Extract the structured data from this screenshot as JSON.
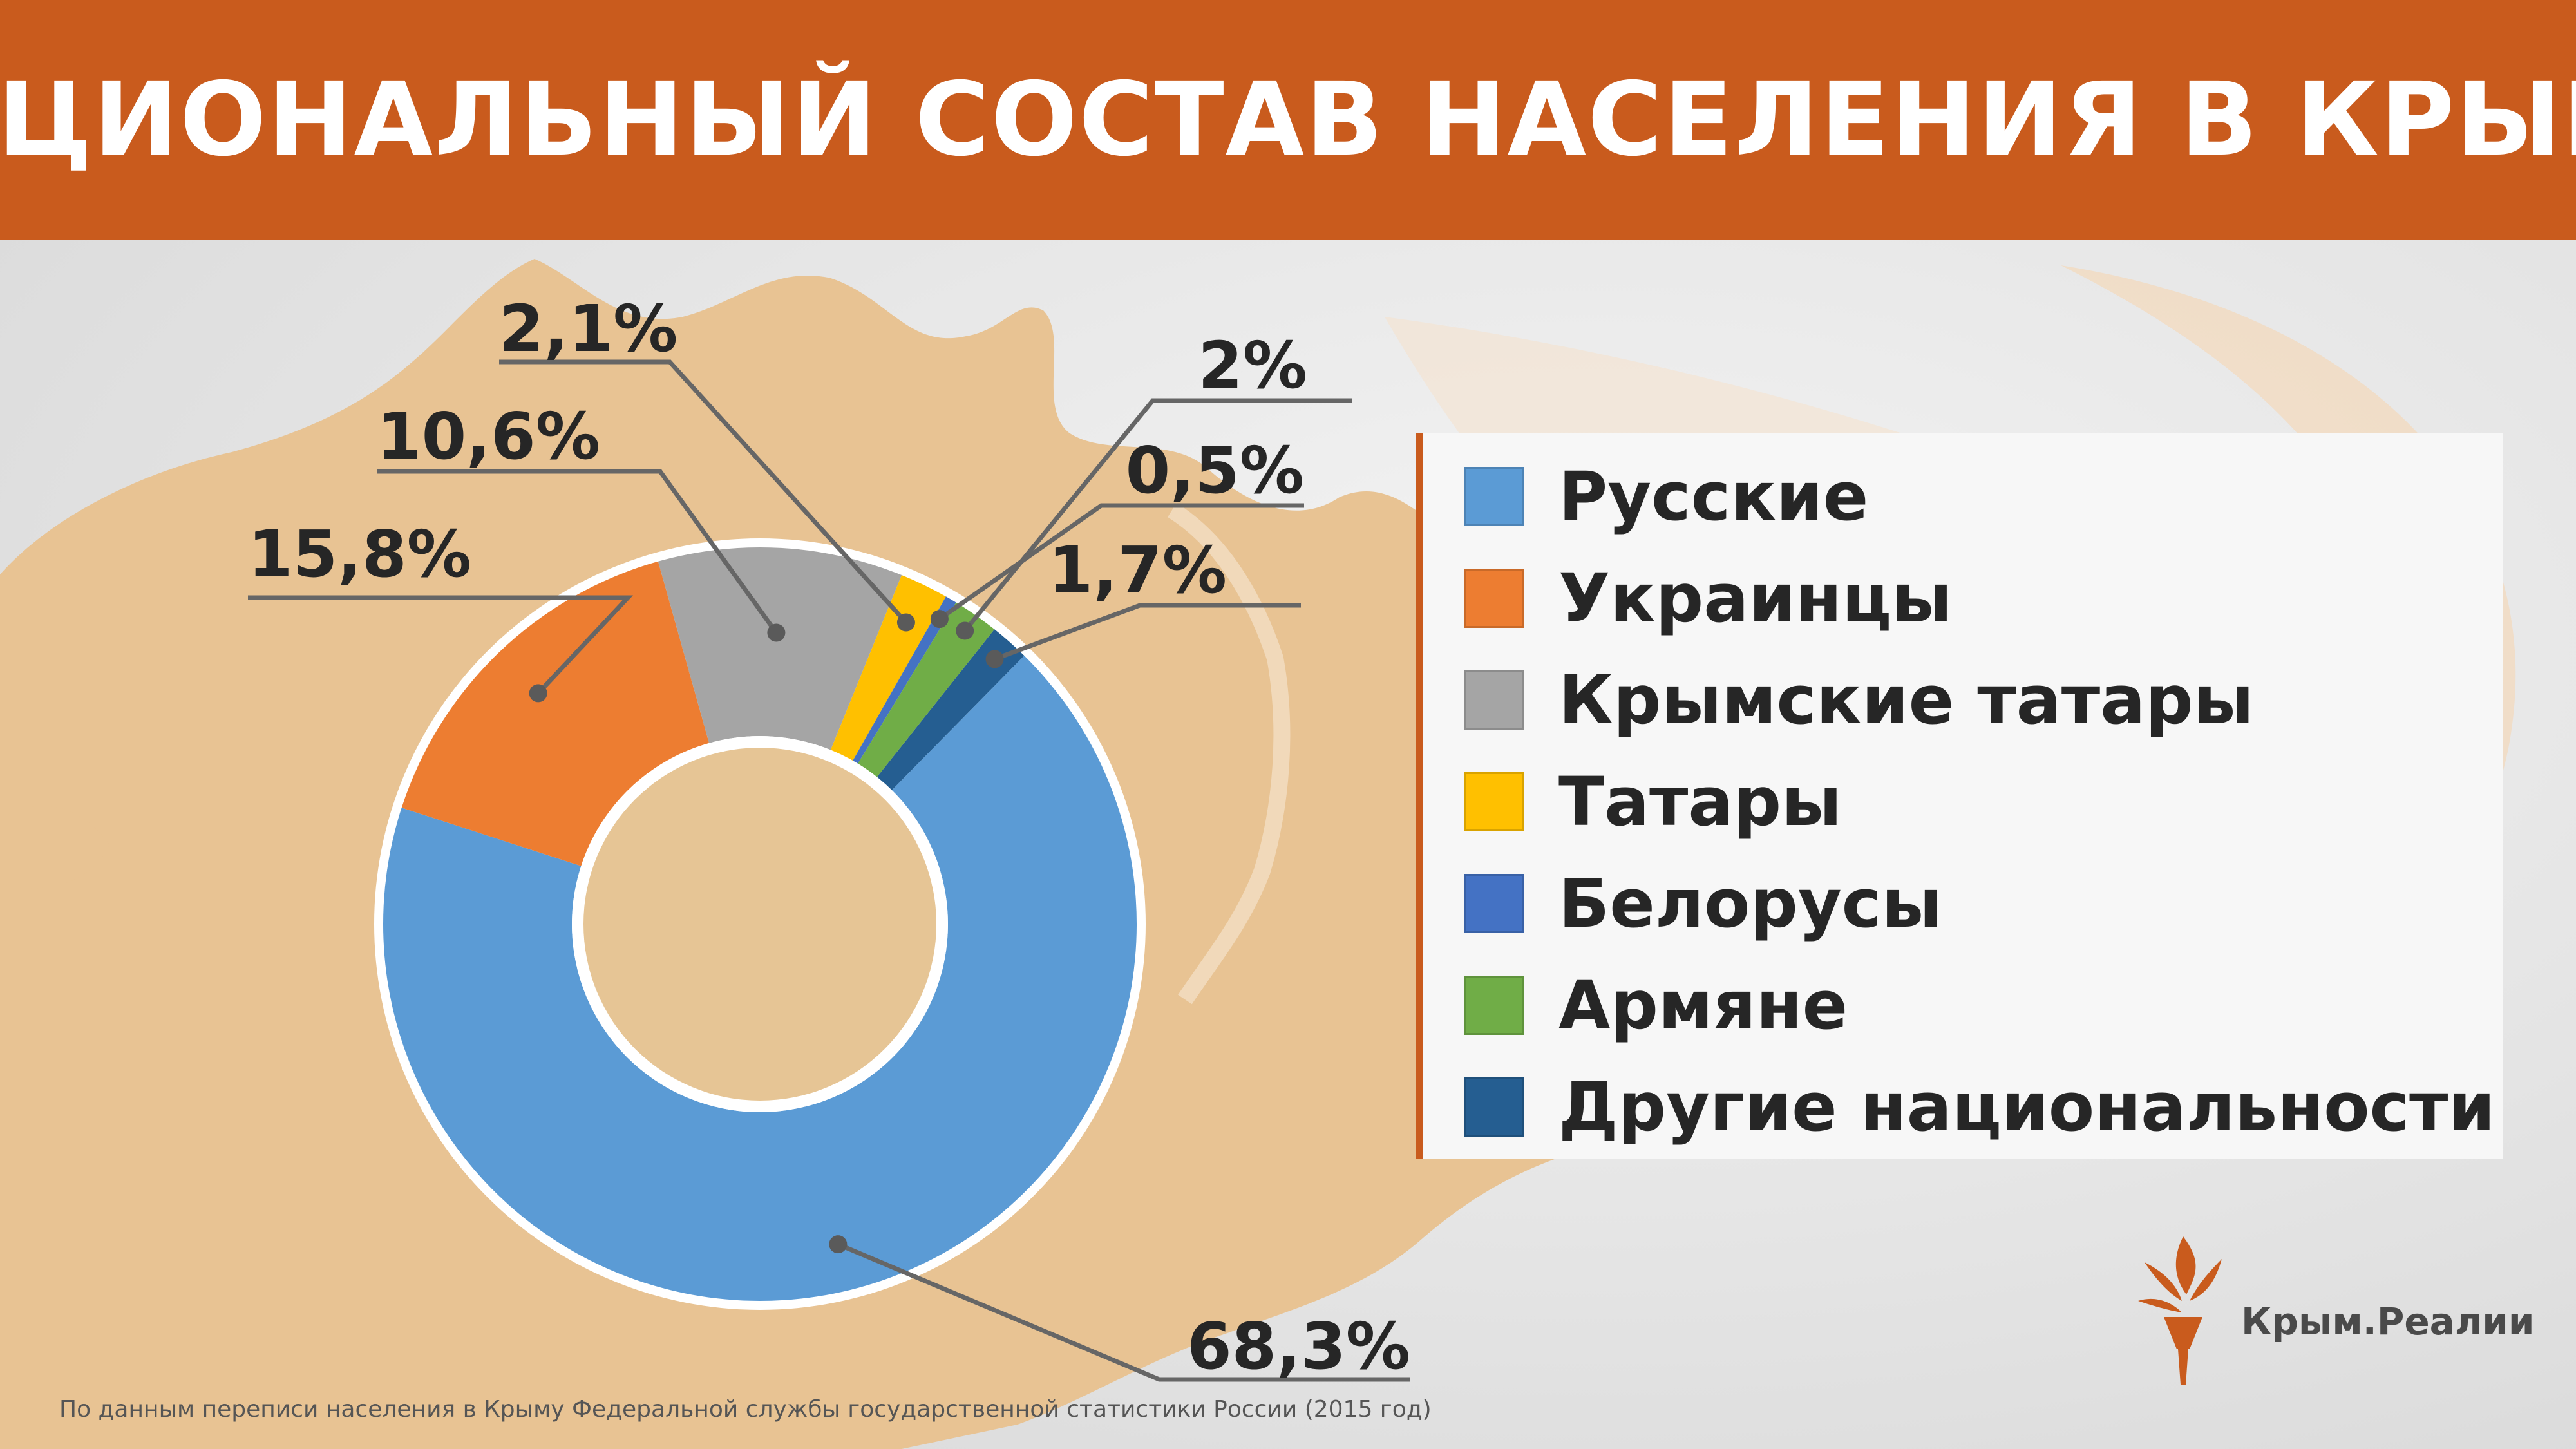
{
  "title": "НАЦИОНАЛЬНЫЙ СОСТАВ НАСЕЛЕНИЯ В КРЫМУ",
  "source_note": "По данным переписи населения в Крыму Федеральной службы государственной статистики России (2015 год)",
  "logo": {
    "text": "Крым.Реалии",
    "icon": "torch-icon",
    "color": "#c95b1d"
  },
  "chart_data": {
    "type": "pie",
    "donut": true,
    "legend_position": "right",
    "series": [
      {
        "name": "Русские",
        "label": "68,3%",
        "value": 68.3,
        "color": "#5b9bd5"
      },
      {
        "name": "Украинцы",
        "label": "15,8%",
        "value": 15.8,
        "color": "#ed7d31"
      },
      {
        "name": "Крымские татары",
        "label": "10,6%",
        "value": 10.6,
        "color": "#a5a5a5"
      },
      {
        "name": "Татары",
        "label": "2,1%",
        "value": 2.1,
        "color": "#ffc000"
      },
      {
        "name": "Белорусы",
        "label": "0,5%",
        "value": 0.5,
        "color": "#4472c4"
      },
      {
        "name": "Армяне",
        "label": "2%",
        "value": 2.0,
        "color": "#70ad47"
      },
      {
        "name": "Другие национальности",
        "label": "1,7%",
        "value": 1.7,
        "color": "#255e91"
      }
    ]
  }
}
